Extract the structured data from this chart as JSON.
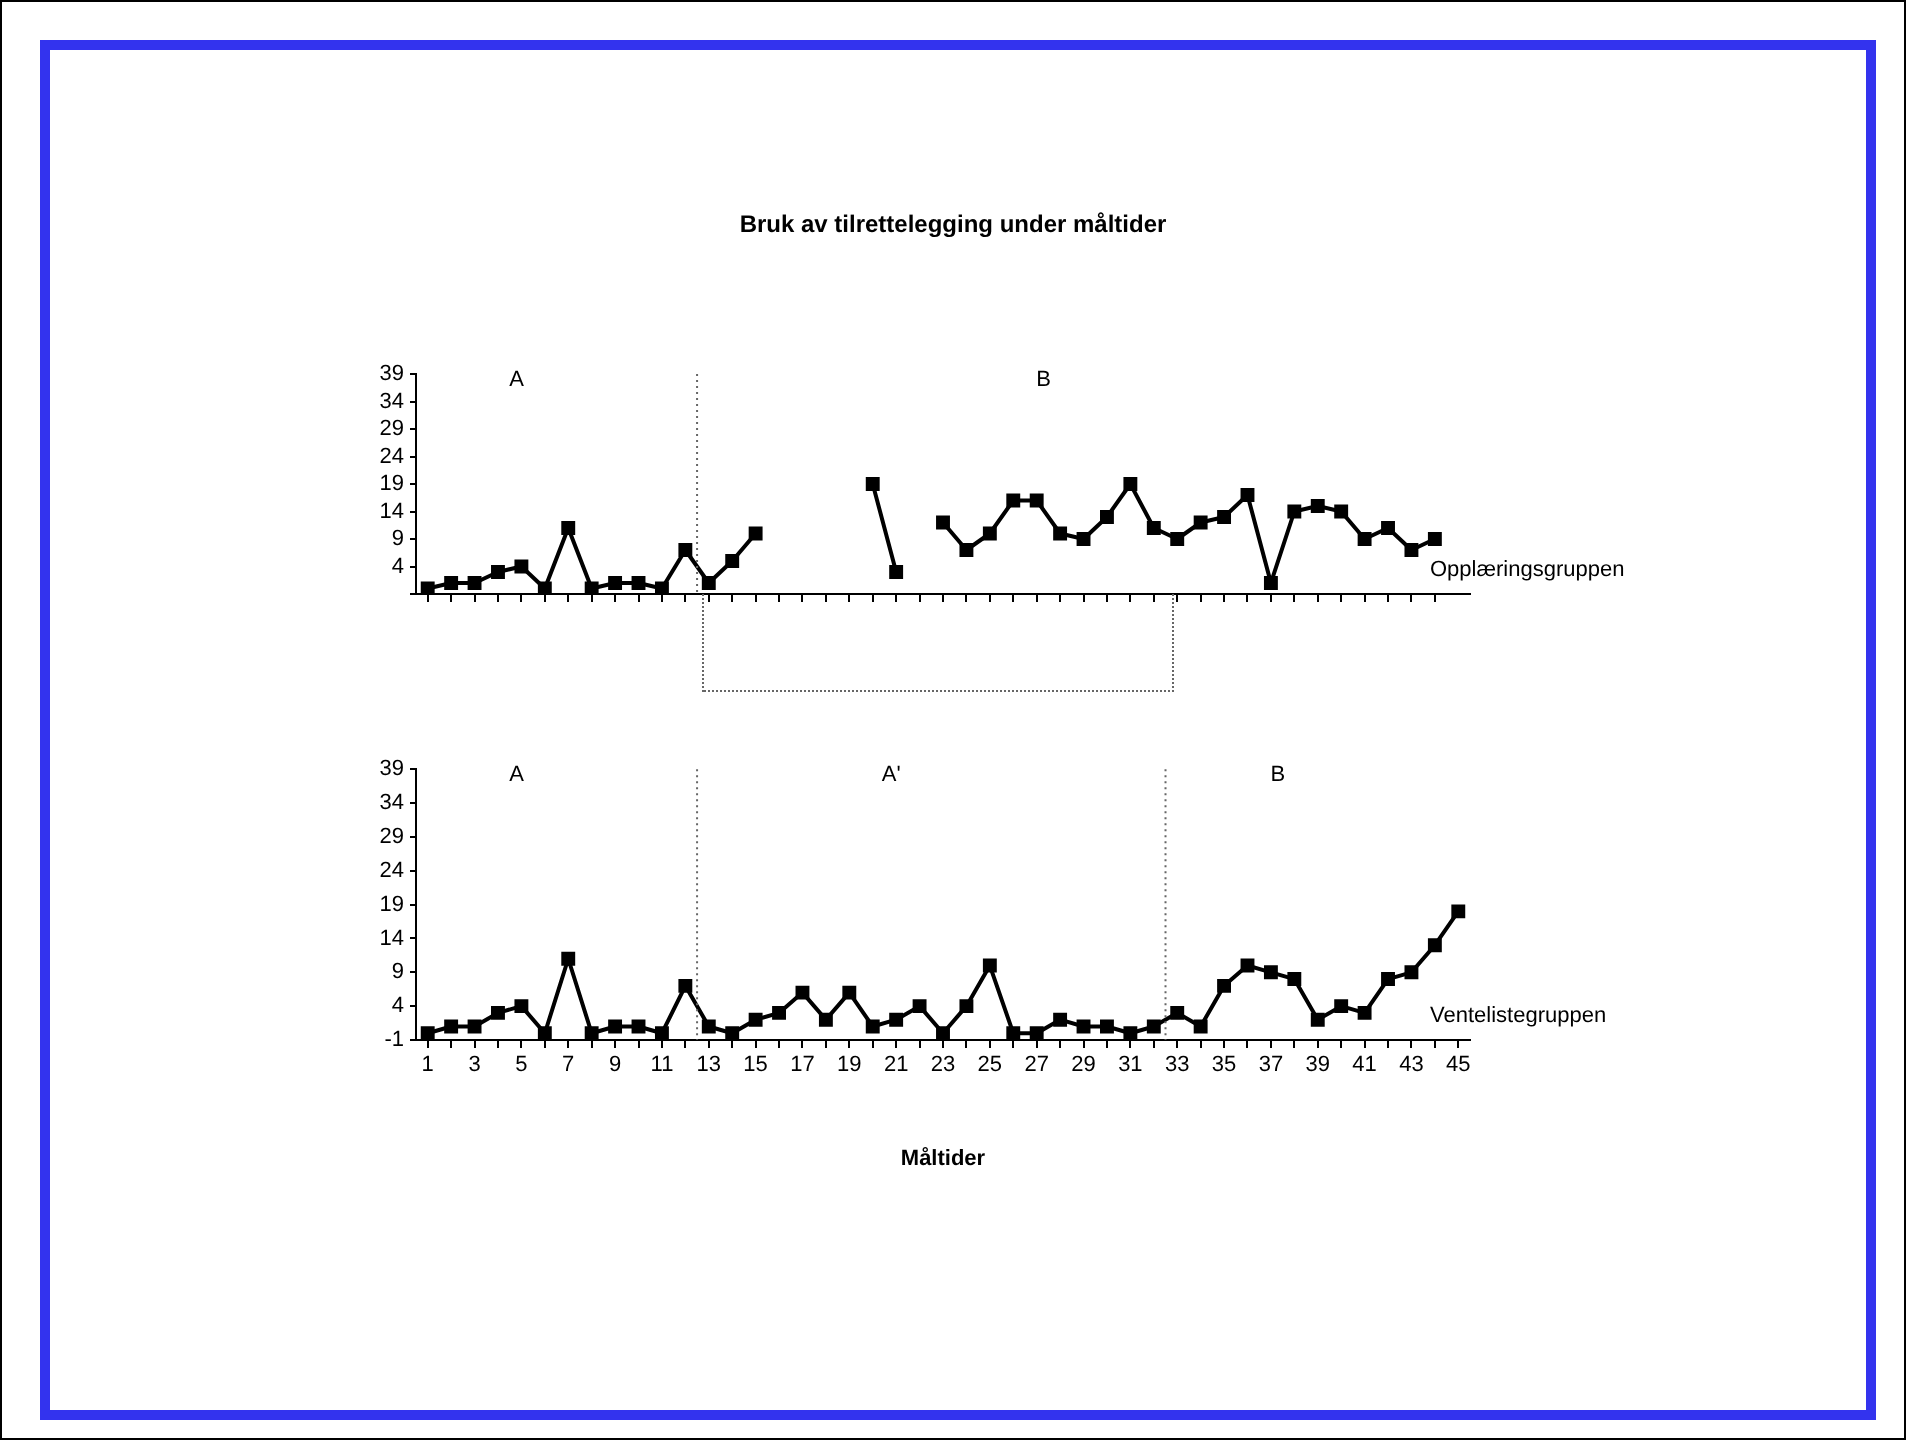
{
  "chart_data": [
    {
      "type": "line",
      "title": "Bruk av tilrettelegging under måltider",
      "x": [
        1,
        2,
        3,
        4,
        5,
        6,
        7,
        8,
        9,
        10,
        11,
        12,
        13,
        14,
        15,
        16,
        17,
        18,
        19,
        20,
        21,
        22,
        23,
        24,
        25,
        26,
        27,
        28,
        29,
        30,
        31,
        32,
        33,
        34,
        35,
        36,
        37,
        38,
        39,
        40,
        41,
        42,
        43,
        44
      ],
      "series": [
        {
          "color": "#000000",
          "values": [
            0,
            1,
            1,
            3,
            4,
            0,
            11,
            0,
            1,
            1,
            0,
            7,
            1,
            5,
            10,
            null,
            null,
            null,
            null,
            19,
            3,
            null,
            12,
            7,
            10,
            16,
            16,
            10,
            9,
            13,
            19,
            11,
            9,
            12,
            13,
            17,
            1,
            14,
            15,
            14,
            9,
            11,
            7,
            9
          ]
        }
      ],
      "xlim": [
        0.5,
        45.5
      ],
      "xticks": [
        1,
        2,
        3,
        4,
        5,
        6,
        7,
        8,
        9,
        10,
        11,
        12,
        13,
        14,
        15,
        16,
        17,
        18,
        19,
        20,
        21,
        22,
        23,
        24,
        25,
        26,
        27,
        28,
        29,
        30,
        31,
        32,
        33,
        34,
        35,
        36,
        37,
        38,
        39,
        40,
        41,
        42,
        43,
        44
      ],
      "ylim": [
        -1,
        39
      ],
      "yticks": [
        {
          "value": -1,
          "label": null
        },
        4,
        9,
        14,
        19,
        24,
        29,
        34,
        39
      ],
      "tick_labels": "y",
      "marker": "square",
      "grid": false,
      "legend": false,
      "ref_lines": [
        {
          "axis": "x",
          "value": 12.5,
          "color": "#666666",
          "line_style": "dotted"
        }
      ],
      "annotations": [
        "A",
        "B",
        "Opplæringsgruppen"
      ]
    },
    {
      "type": "line",
      "xlabel": "Måltider",
      "x": [
        1,
        2,
        3,
        4,
        5,
        6,
        7,
        8,
        9,
        10,
        11,
        12,
        13,
        14,
        15,
        16,
        17,
        18,
        19,
        20,
        21,
        22,
        23,
        24,
        25,
        26,
        27,
        28,
        29,
        30,
        31,
        32,
        33,
        34,
        35,
        36,
        37,
        38,
        39,
        40,
        41,
        42,
        43,
        44,
        45
      ],
      "series": [
        {
          "color": "#000000",
          "values": [
            0,
            1,
            1,
            3,
            4,
            0,
            11,
            0,
            1,
            1,
            0,
            7,
            1,
            0,
            2,
            3,
            6,
            2,
            6,
            1,
            2,
            4,
            0,
            4,
            10,
            0,
            0,
            2,
            1,
            1,
            0,
            1,
            3,
            1,
            7,
            10,
            9,
            8,
            2,
            4,
            3,
            8,
            9,
            13,
            18
          ]
        }
      ],
      "xlim": [
        0.5,
        45.5
      ],
      "xticks": [
        1,
        {
          "value": 2,
          "label": null
        },
        3,
        {
          "value": 4,
          "label": null
        },
        5,
        {
          "value": 6,
          "label": null
        },
        7,
        {
          "value": 8,
          "label": null
        },
        9,
        {
          "value": 10,
          "label": null
        },
        11,
        {
          "value": 12,
          "label": null
        },
        13,
        {
          "value": 14,
          "label": null
        },
        15,
        {
          "value": 16,
          "label": null
        },
        17,
        {
          "value": 18,
          "label": null
        },
        19,
        {
          "value": 20,
          "label": null
        },
        21,
        {
          "value": 22,
          "label": null
        },
        23,
        {
          "value": 24,
          "label": null
        },
        25,
        {
          "value": 26,
          "label": null
        },
        27,
        {
          "value": 28,
          "label": null
        },
        29,
        {
          "value": 30,
          "label": null
        },
        31,
        {
          "value": 32,
          "label": null
        },
        33,
        {
          "value": 34,
          "label": null
        },
        35,
        {
          "value": 36,
          "label": null
        },
        37,
        {
          "value": 38,
          "label": null
        },
        39,
        {
          "value": 40,
          "label": null
        },
        41,
        {
          "value": 42,
          "label": null
        },
        43,
        {
          "value": 44,
          "label": null
        },
        45
      ],
      "ylim": [
        -1,
        39
      ],
      "yticks": [
        -1,
        4,
        9,
        14,
        19,
        24,
        29,
        34,
        39
      ],
      "marker": "square",
      "grid": false,
      "legend": false,
      "ref_lines": [
        {
          "axis": "x",
          "value": 12.5,
          "color": "#666666",
          "line_style": "dotted"
        },
        {
          "axis": "x",
          "value": 32.5,
          "color": "#666666",
          "line_style": "dotted"
        }
      ],
      "annotations": [
        "A",
        "A'",
        "B",
        "Ventelistegruppen"
      ]
    }
  ]
}
